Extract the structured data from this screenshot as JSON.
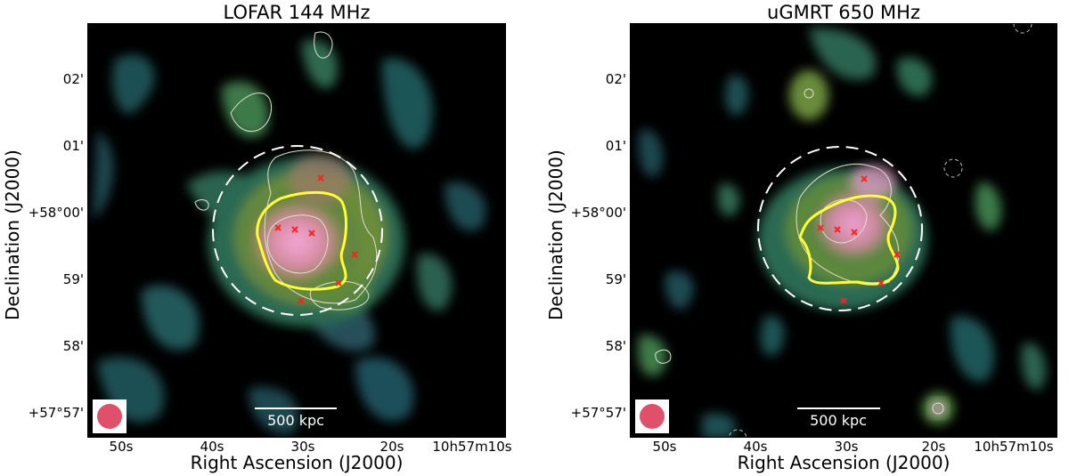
{
  "panels": [
    {
      "title": "LOFAR 144 MHz",
      "xlabel": "Right Ascension (J2000)",
      "ylabel": "Declination (J2000)",
      "yticks": [
        "02'",
        "01'",
        "+58°00'",
        "59'",
        "58'",
        "+57°57'"
      ],
      "xticks": [
        "50s",
        "40s",
        "30s",
        "20s",
        "10h57m10s"
      ],
      "scalebar": "500 kpc"
    },
    {
      "title": "uGMRT 650 MHz",
      "xlabel": "Right Ascension (J2000)",
      "ylabel": "Declination (J2000)",
      "yticks": [
        "02'",
        "01'",
        "+58°00'",
        "59'",
        "58'",
        "+57°57'"
      ],
      "xticks": [
        "50s",
        "40s",
        "30s",
        "20s",
        "10h57m10s"
      ],
      "scalebar": "500 kpc"
    }
  ],
  "colors": {
    "background": "#000000",
    "low_emission": "#1f5f5a",
    "mid_emission": "#4a8a3a",
    "high_emission": "#d98fa8",
    "peak_emission": "#f0a0d0",
    "contour_white": "#e8e8e8",
    "contour_yellow": "#ffff33",
    "marker_red": "#ff2020",
    "beam_fill": "#e0506a"
  }
}
